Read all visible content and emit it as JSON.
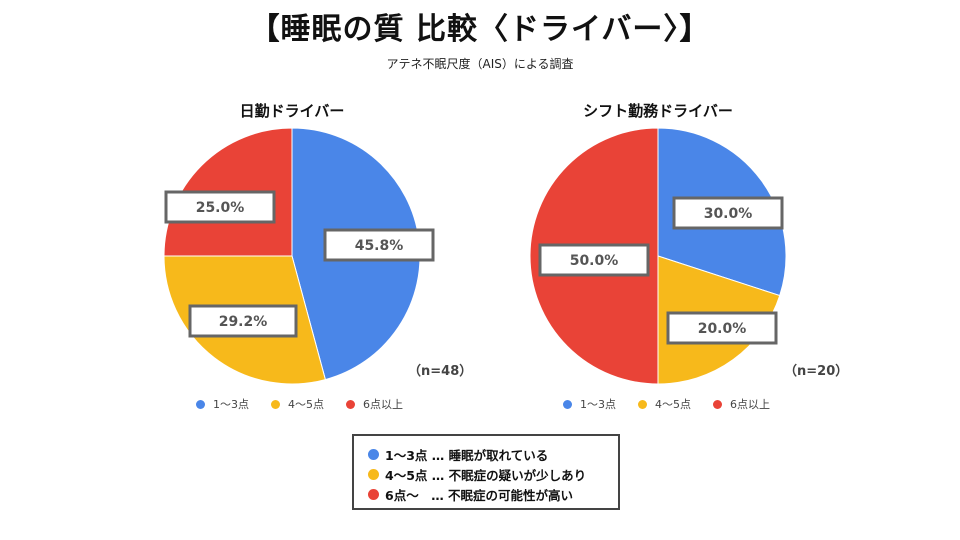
{
  "title": "【睡眠の質 比較〈ドライバー〉】",
  "subtitle": "アテネ不眠尺度（AIS）による調査",
  "colors": {
    "blue": "#4A86E8",
    "yellow": "#F7B91B",
    "red": "#E94337"
  },
  "chart_data": [
    {
      "type": "pie",
      "title": "日勤ドライバー",
      "n_label": "（n=48）",
      "categories": [
        "1～3点",
        "4～5点",
        "6点以上"
      ],
      "values": [
        45.8,
        29.2,
        25.0
      ],
      "labels": [
        "45.8%",
        "29.2%",
        "25.0%"
      ],
      "start": "top, clockwise",
      "legend": "bottom"
    },
    {
      "type": "pie",
      "title": "シフト勤務ドライバー",
      "n_label": "（n=20）",
      "categories": [
        "1～3点",
        "4～5点",
        "6点以上"
      ],
      "values": [
        30.0,
        20.0,
        50.0
      ],
      "labels": [
        "30.0%",
        "20.0%",
        "50.0%"
      ],
      "start": "top, clockwise",
      "legend": "bottom"
    }
  ],
  "legend_labels": [
    "1～3点",
    "4～5点",
    "6点以上"
  ],
  "notes": [
    {
      "key": "1～3点",
      "text": "1～3点 … 睡眠が取れている"
    },
    {
      "key": "4～5点",
      "text": "4～5点 … 不眠症の疑いが少しあり"
    },
    {
      "key": "6点～",
      "text": "6点～　… 不眠症の可能性が高い"
    }
  ]
}
